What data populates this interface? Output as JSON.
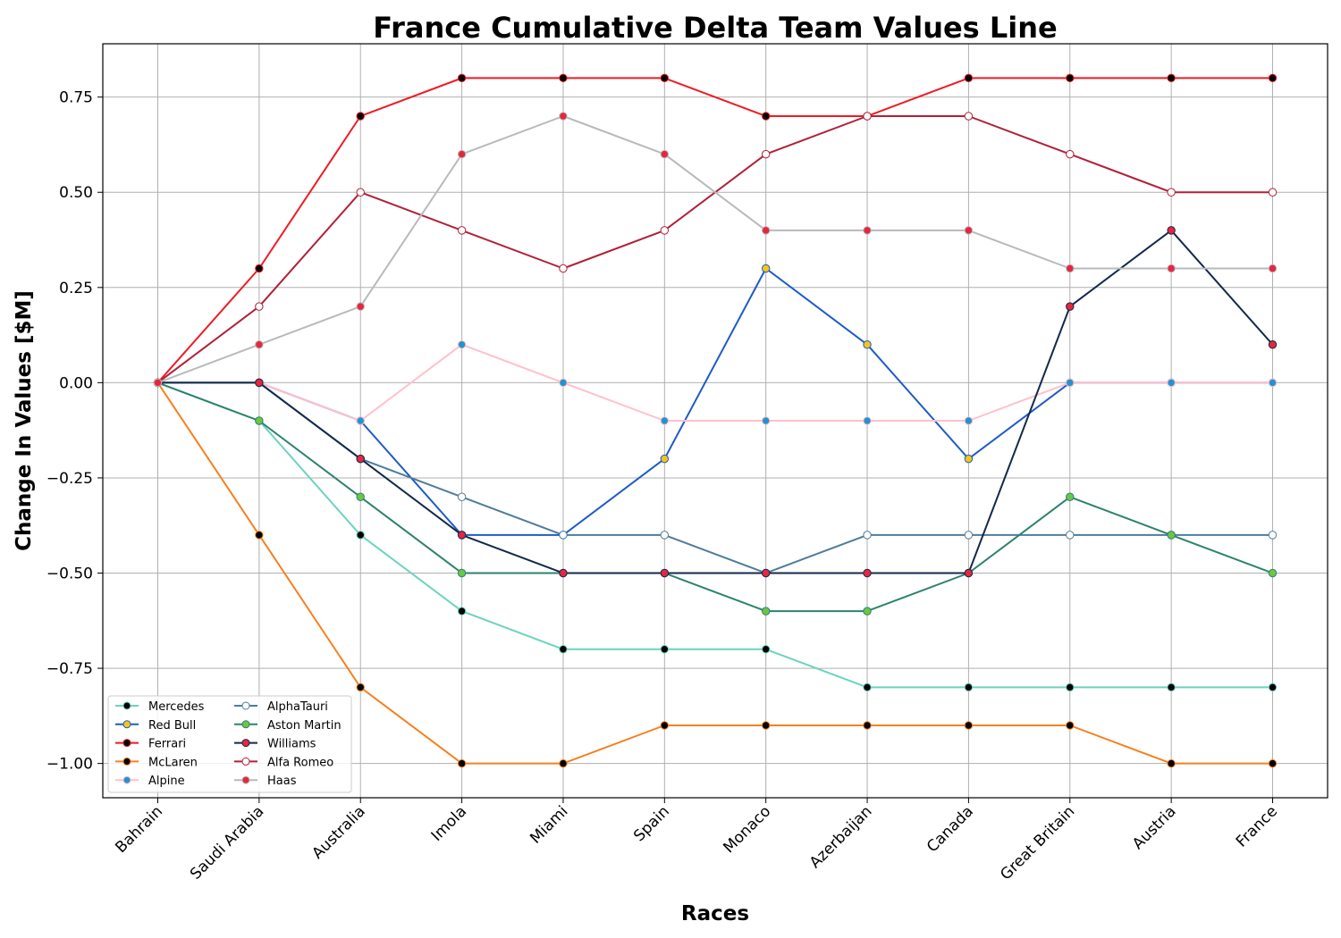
{
  "chart_data": {
    "type": "line",
    "title": "France Cumulative Delta Team Values Line",
    "xlabel": "Races",
    "ylabel": "Change In Values [$M]",
    "ylim": [
      -1.09,
      0.89
    ],
    "grid": true,
    "legend_position": "lower-left",
    "categories": [
      "Bahrain",
      "Saudi Arabia",
      "Australia",
      "Imola",
      "Miami",
      "Spain",
      "Monaco",
      "Azerbaijan",
      "Canada",
      "Great Britain",
      "Austria",
      "France"
    ],
    "yticks": [
      {
        "value": -1.0,
        "label": "−1.00"
      },
      {
        "value": -0.75,
        "label": "−0.75"
      },
      {
        "value": -0.5,
        "label": "−0.50"
      },
      {
        "value": -0.25,
        "label": "−0.25"
      },
      {
        "value": 0.0,
        "label": "0.00"
      },
      {
        "value": 0.25,
        "label": "0.25"
      },
      {
        "value": 0.5,
        "label": "0.50"
      },
      {
        "value": 0.75,
        "label": "0.75"
      }
    ],
    "series": [
      {
        "name": "Mercedes",
        "line_color": "#6cd3bf",
        "marker_face": "#000000",
        "marker_edge": "#6cd3bf",
        "values": [
          0,
          -0.1,
          -0.4,
          -0.6,
          -0.7,
          -0.7,
          -0.7,
          -0.8,
          -0.8,
          -0.8,
          -0.8,
          -0.8
        ]
      },
      {
        "name": "Red Bull",
        "line_color": "#1e5bc6",
        "marker_face": "#f5c518",
        "marker_edge": "#1e5bc6",
        "values": [
          0,
          0,
          -0.1,
          -0.4,
          -0.4,
          -0.2,
          0.3,
          0.1,
          -0.2,
          0,
          0,
          0
        ]
      },
      {
        "name": "Ferrari",
        "line_color": "#ed1c24",
        "marker_face": "#000000",
        "marker_edge": "#ed1c24",
        "values": [
          0,
          0.3,
          0.7,
          0.8,
          0.8,
          0.8,
          0.7,
          0.7,
          0.8,
          0.8,
          0.8,
          0.8
        ]
      },
      {
        "name": "McLaren",
        "line_color": "#f58020",
        "marker_face": "#000000",
        "marker_edge": "#f58020",
        "values": [
          0,
          -0.4,
          -0.8,
          -1.0,
          -1.0,
          -0.9,
          -0.9,
          -0.9,
          -0.9,
          -0.9,
          -1.0,
          -1.0
        ]
      },
      {
        "name": "Alpine",
        "line_color": "#ffc0cb",
        "marker_face": "#2293d1",
        "marker_edge": "#ffc0cb",
        "values": [
          0,
          0,
          -0.1,
          0.1,
          0,
          -0.1,
          -0.1,
          -0.1,
          -0.1,
          0,
          0,
          0
        ]
      },
      {
        "name": "AlphaTauri",
        "line_color": "#4e7c9b",
        "marker_face": "#ffffff",
        "marker_edge": "#4e7c9b",
        "values": [
          0,
          0,
          -0.2,
          -0.3,
          -0.4,
          -0.4,
          -0.5,
          -0.4,
          -0.4,
          -0.4,
          -0.4,
          -0.4
        ]
      },
      {
        "name": "Aston Martin",
        "line_color": "#2d826d",
        "marker_face": "#6cc644",
        "marker_edge": "#2d826d",
        "values": [
          0,
          -0.1,
          -0.3,
          -0.5,
          -0.5,
          -0.5,
          -0.6,
          -0.6,
          -0.5,
          -0.3,
          -0.4,
          -0.5
        ]
      },
      {
        "name": "Williams",
        "line_color": "#13294b",
        "marker_face": "#e8253e",
        "marker_edge": "#13294b",
        "values": [
          0,
          0,
          -0.2,
          -0.4,
          -0.5,
          -0.5,
          -0.5,
          -0.5,
          -0.5,
          0.2,
          0.4,
          0.1
        ]
      },
      {
        "name": "Alfa Romeo",
        "line_color": "#b12039",
        "marker_face": "#ffffff",
        "marker_edge": "#b12039",
        "values": [
          0,
          0.2,
          0.5,
          0.4,
          0.3,
          0.4,
          0.6,
          0.7,
          0.7,
          0.6,
          0.5,
          0.5
        ]
      },
      {
        "name": "Haas",
        "line_color": "#b6babd",
        "marker_face": "#e8253e",
        "marker_edge": "#b6babd",
        "values": [
          0,
          0.1,
          0.2,
          0.6,
          0.7,
          0.6,
          0.4,
          0.4,
          0.4,
          0.3,
          0.3,
          0.3
        ]
      }
    ]
  }
}
